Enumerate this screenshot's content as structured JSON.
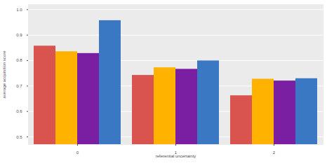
{
  "chart_data": {
    "type": "bar",
    "x_label": "referential uncertainty",
    "y_label": "average acquisition score",
    "categories": [
      "0",
      "1",
      "2"
    ],
    "series": [
      {
        "color": "#d9544f",
        "values": [
          0.857,
          0.742,
          0.662
        ]
      },
      {
        "color": "#ffb300",
        "values": [
          0.835,
          0.772,
          0.727
        ]
      },
      {
        "color": "#7b1fa2",
        "values": [
          0.828,
          0.766,
          0.72
        ]
      },
      {
        "color": "#3a78c3",
        "values": [
          0.957,
          0.799,
          0.729
        ]
      }
    ],
    "ylim": [
      0.47,
      1.02
    ],
    "yticks": [
      0.5,
      0.6,
      0.7,
      0.8,
      0.9,
      {
        "value": 1,
        "label": "1.0"
      }
    ],
    "grid": true
  }
}
